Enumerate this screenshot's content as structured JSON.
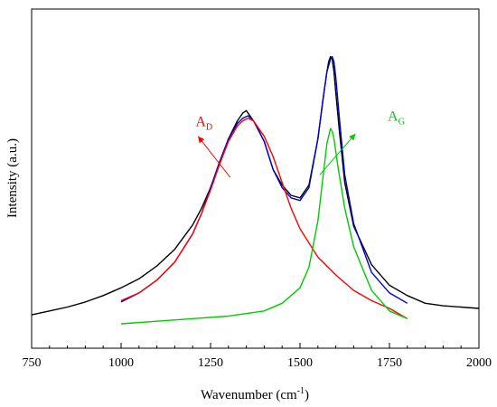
{
  "chart_data": {
    "type": "line",
    "xlabel": "Wavenumber (cm",
    "xlabel_sup": "-1",
    "xlabel_close": ")",
    "ylabel": "Intensity (a.u.)",
    "xlim": [
      750,
      2000
    ],
    "xticks": [
      "750",
      "1000",
      "1250",
      "1500",
      "1750",
      "2000"
    ],
    "yticks_labeled": false,
    "grid": false,
    "colors": {
      "measured": "#000000",
      "fit_total": "#0000cc",
      "band_D": "#ff0000",
      "band_G": "#00cc00"
    },
    "series": [
      {
        "key": "measured",
        "x": [
          750,
          800,
          850,
          900,
          950,
          1000,
          1050,
          1100,
          1150,
          1200,
          1225,
          1250,
          1275,
          1300,
          1325,
          1340,
          1350,
          1360,
          1375,
          1400,
          1425,
          1450,
          1475,
          1500,
          1525,
          1550,
          1565,
          1575,
          1580,
          1585,
          1590,
          1595,
          1600,
          1610,
          1625,
          1650,
          1700,
          1750,
          1800,
          1850,
          1900,
          1950,
          2000
        ],
        "y": [
          0.035,
          0.05,
          0.065,
          0.085,
          0.11,
          0.14,
          0.175,
          0.225,
          0.29,
          0.385,
          0.45,
          0.53,
          0.62,
          0.72,
          0.79,
          0.82,
          0.83,
          0.81,
          0.78,
          0.71,
          0.6,
          0.54,
          0.5,
          0.49,
          0.54,
          0.72,
          0.88,
          0.98,
          1.02,
          1.04,
          1.03,
          0.98,
          0.9,
          0.75,
          0.55,
          0.38,
          0.23,
          0.15,
          0.11,
          0.08,
          0.07,
          0.065,
          0.06
        ]
      },
      {
        "key": "fit_total",
        "x": [
          1000,
          1050,
          1100,
          1150,
          1200,
          1225,
          1250,
          1275,
          1300,
          1325,
          1340,
          1355,
          1370,
          1400,
          1425,
          1450,
          1475,
          1500,
          1525,
          1550,
          1565,
          1575,
          1585,
          1590,
          1595,
          1600,
          1610,
          1625,
          1650,
          1700,
          1750,
          1800
        ],
        "y": [
          0.085,
          0.12,
          0.17,
          0.24,
          0.35,
          0.43,
          0.53,
          0.63,
          0.72,
          0.78,
          0.8,
          0.81,
          0.79,
          0.71,
          0.6,
          0.53,
          0.49,
          0.48,
          0.53,
          0.72,
          0.88,
          0.98,
          1.03,
          1.04,
          1.02,
          0.96,
          0.8,
          0.58,
          0.39,
          0.2,
          0.12,
          0.08
        ]
      },
      {
        "key": "band_D",
        "x": [
          1000,
          1050,
          1100,
          1150,
          1200,
          1225,
          1250,
          1275,
          1300,
          1325,
          1340,
          1355,
          1370,
          1400,
          1425,
          1450,
          1475,
          1500,
          1550,
          1600,
          1650,
          1700,
          1750,
          1800
        ],
        "y": [
          0.09,
          0.12,
          0.17,
          0.24,
          0.35,
          0.43,
          0.52,
          0.62,
          0.71,
          0.77,
          0.79,
          0.8,
          0.79,
          0.73,
          0.65,
          0.55,
          0.45,
          0.37,
          0.26,
          0.19,
          0.13,
          0.09,
          0.06,
          0.02
        ]
      },
      {
        "key": "band_G",
        "x": [
          1000,
          1100,
          1200,
          1300,
          1400,
          1450,
          1500,
          1525,
          1550,
          1565,
          1575,
          1585,
          1590,
          1595,
          1605,
          1625,
          1650,
          1700,
          1750,
          1800
        ],
        "y": [
          0.0,
          0.01,
          0.02,
          0.03,
          0.05,
          0.08,
          0.14,
          0.22,
          0.4,
          0.58,
          0.7,
          0.76,
          0.75,
          0.72,
          0.62,
          0.45,
          0.3,
          0.13,
          0.05,
          0.02
        ]
      }
    ],
    "annotations": [
      {
        "label": "A",
        "sub": "D",
        "color": "#ff0000",
        "text_x": 1208,
        "text_y": 0.77,
        "arrow_from": [
          1305,
          0.57
        ],
        "arrow_to": [
          1215,
          0.73
        ]
      },
      {
        "label": "A",
        "sub": "G",
        "color": "#00cc00",
        "text_x": 1745,
        "text_y": 0.79,
        "arrow_from": [
          1555,
          0.58
        ],
        "arrow_to": [
          1655,
          0.74
        ]
      }
    ]
  }
}
